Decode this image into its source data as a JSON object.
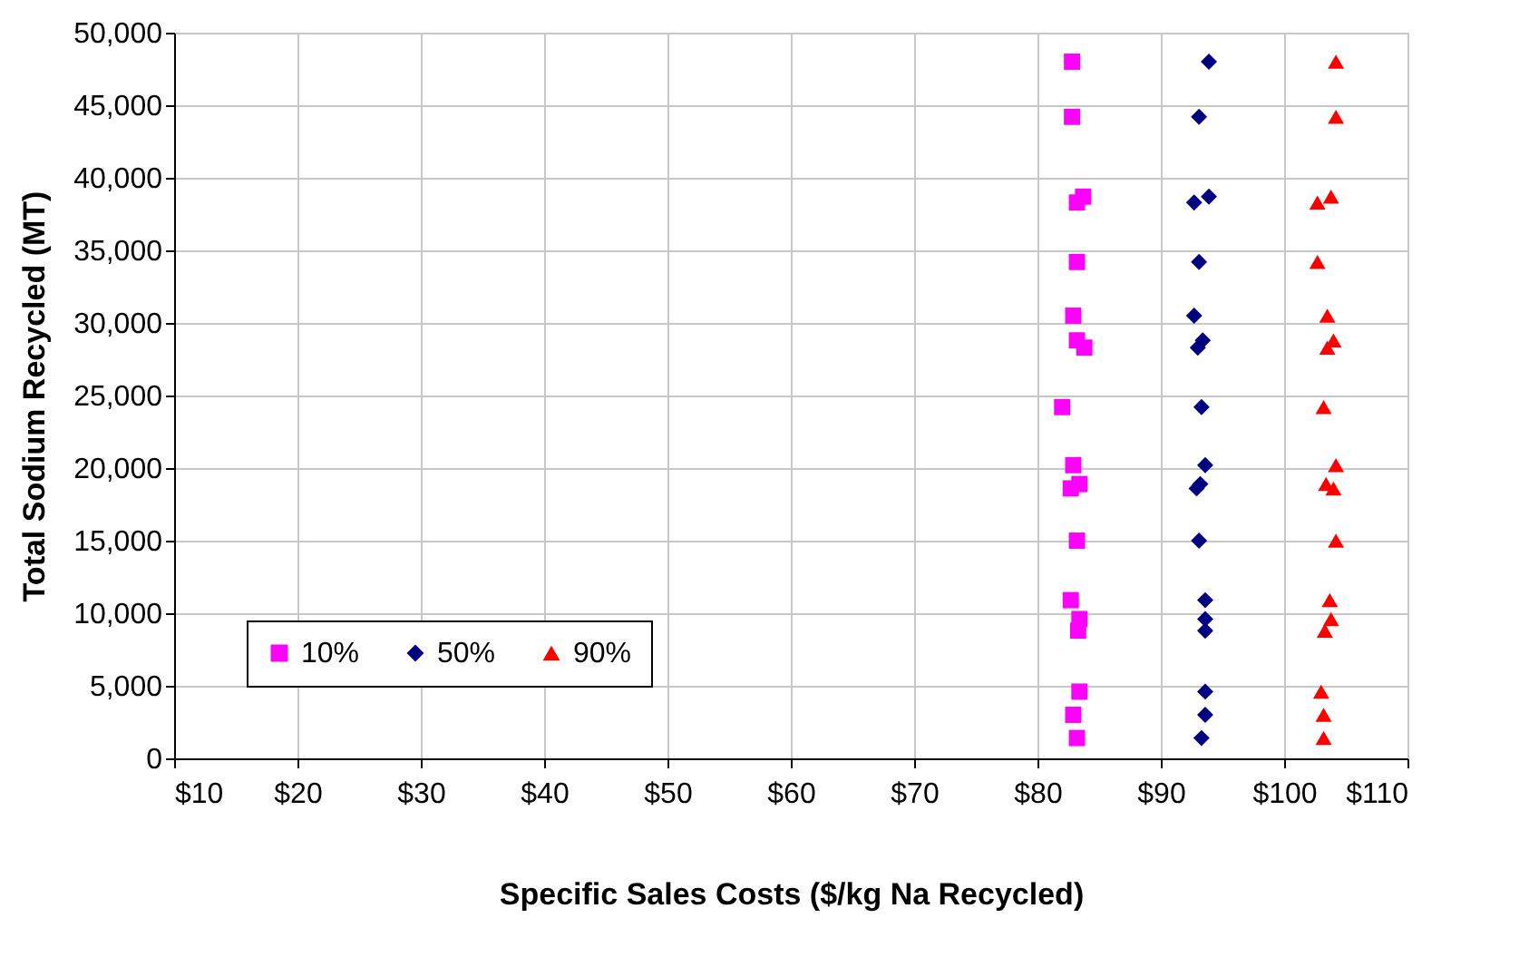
{
  "chart_data": {
    "type": "scatter",
    "xlabel": "Specific Sales Costs ($/kg Na Recycled)",
    "ylabel": "Total Sodium Recycled (MT)",
    "xlim": [
      10,
      110
    ],
    "ylim": [
      0,
      50000
    ],
    "xticks": [
      {
        "value": 10,
        "label": "$10"
      },
      {
        "value": 20,
        "label": "$20"
      },
      {
        "value": 30,
        "label": "$30"
      },
      {
        "value": 40,
        "label": "$40"
      },
      {
        "value": 50,
        "label": "$50"
      },
      {
        "value": 60,
        "label": "$60"
      },
      {
        "value": 70,
        "label": "$70"
      },
      {
        "value": 80,
        "label": "$80"
      },
      {
        "value": 90,
        "label": "$90"
      },
      {
        "value": 100,
        "label": "$100"
      },
      {
        "value": 110,
        "label": "$110"
      }
    ],
    "yticks": [
      0,
      {
        "value": 5000,
        "label": "5,000"
      },
      {
        "value": 10000,
        "label": "10,000"
      },
      {
        "value": 15000,
        "label": "15,000"
      },
      {
        "value": 20000,
        "label": "20,000"
      },
      {
        "value": 25000,
        "label": "25,000"
      },
      {
        "value": 30000,
        "label": "30,000"
      },
      {
        "value": 35000,
        "label": "35,000"
      },
      {
        "value": 40000,
        "label": "40,000"
      },
      {
        "value": 45000,
        "label": "45,000"
      },
      {
        "value": 50000,
        "label": "50,000"
      }
    ],
    "grid": true,
    "legend": "bottom left",
    "series": [
      {
        "name": "10%",
        "color": "#ff00ff",
        "marker": "square",
        "x": [
          82.8,
          82.8,
          83.7,
          83.2,
          83.2,
          82.9,
          83.2,
          83.8,
          82.0,
          82.9,
          83.4,
          82.7,
          83.2,
          82.7,
          83.4,
          83.3,
          83.4,
          82.9,
          83.2
        ],
        "values": [
          48000,
          44200,
          38700,
          38300,
          34200,
          30500,
          28800,
          28300,
          24200,
          20200,
          18900,
          18600,
          15000,
          10900,
          9600,
          8800,
          4600,
          3000,
          1400
        ]
      },
      {
        "name": "50%",
        "color": "#000080",
        "marker": "diamond",
        "x": [
          93.9,
          93.1,
          93.9,
          92.7,
          93.1,
          92.7,
          93.4,
          93.0,
          93.3,
          93.6,
          93.2,
          92.9,
          93.1,
          93.6,
          93.6,
          93.6,
          93.6,
          93.6,
          93.3
        ],
        "values": [
          48000,
          44200,
          38700,
          38300,
          34200,
          30500,
          28800,
          28300,
          24200,
          20200,
          18900,
          18600,
          15000,
          10900,
          9600,
          8800,
          4600,
          3000,
          1400
        ]
      },
      {
        "name": "90%",
        "color": "#ff0000",
        "marker": "triangle",
        "x": [
          104.2,
          104.2,
          103.8,
          102.7,
          102.7,
          103.5,
          104.0,
          103.5,
          103.2,
          104.2,
          103.4,
          104.0,
          104.2,
          103.7,
          103.8,
          103.3,
          103.0,
          103.2,
          103.2
        ],
        "values": [
          48000,
          44200,
          38700,
          38300,
          34200,
          30500,
          28800,
          28300,
          24200,
          20200,
          18900,
          18600,
          15000,
          10900,
          9600,
          8800,
          4600,
          3000,
          1400
        ]
      }
    ]
  }
}
